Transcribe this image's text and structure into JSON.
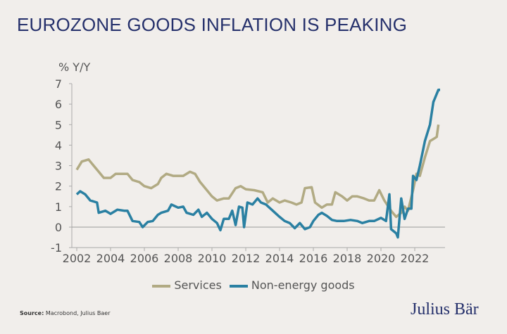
{
  "title": "EUROZONE GOODS INFLATION IS PEAKING",
  "source_label": "Source:",
  "source_text": "Macrobond, Julius Baer",
  "logo": "Julius Bär",
  "chart_data": {
    "type": "line",
    "title": "EUROZONE GOODS INFLATION IS PEAKING",
    "ylabel": "% Y/Y",
    "xlabel": "",
    "xlim": [
      2001.9,
      2023.7
    ],
    "ylim": [
      -1,
      7
    ],
    "xticks": [
      2002,
      2004,
      2006,
      2008,
      2010,
      2012,
      2014,
      2016,
      2018,
      2020,
      2022
    ],
    "yticks": [
      -1,
      0,
      1,
      2,
      3,
      4,
      5,
      6,
      7
    ],
    "legend": "bottom-center",
    "grid": false,
    "series": [
      {
        "name": "Services",
        "color": "#b1aa83",
        "x": [
          2002.0,
          2002.3,
          2002.7,
          2003.0,
          2003.3,
          2003.6,
          2004.0,
          2004.3,
          2004.7,
          2005.0,
          2005.3,
          2005.7,
          2006.0,
          2006.4,
          2006.8,
          2007.0,
          2007.3,
          2007.7,
          2008.0,
          2008.3,
          2008.7,
          2009.0,
          2009.3,
          2009.7,
          2010.0,
          2010.3,
          2010.7,
          2011.0,
          2011.4,
          2011.7,
          2012.0,
          2012.5,
          2013.0,
          2013.3,
          2013.6,
          2014.0,
          2014.3,
          2014.7,
          2015.0,
          2015.3,
          2015.5,
          2015.9,
          2016.1,
          2016.5,
          2016.8,
          2017.1,
          2017.3,
          2017.7,
          2018.0,
          2018.3,
          2018.6,
          2019.0,
          2019.3,
          2019.6,
          2019.9,
          2020.2,
          2020.6,
          2020.9,
          2021.2,
          2021.4,
          2021.6,
          2021.9,
          2022.1,
          2022.3,
          2022.6,
          2022.9,
          2023.1,
          2023.3,
          2023.4
        ],
        "y": [
          2.8,
          3.2,
          3.3,
          3.0,
          2.7,
          2.4,
          2.4,
          2.6,
          2.6,
          2.6,
          2.3,
          2.2,
          2.0,
          1.9,
          2.1,
          2.4,
          2.6,
          2.5,
          2.5,
          2.5,
          2.7,
          2.6,
          2.2,
          1.8,
          1.5,
          1.3,
          1.4,
          1.4,
          1.9,
          2.0,
          1.85,
          1.8,
          1.7,
          1.2,
          1.4,
          1.2,
          1.3,
          1.2,
          1.1,
          1.2,
          1.9,
          1.95,
          1.2,
          0.95,
          1.1,
          1.1,
          1.7,
          1.5,
          1.3,
          1.5,
          1.5,
          1.4,
          1.3,
          1.3,
          1.8,
          1.3,
          0.8,
          0.5,
          0.7,
          1.0,
          0.8,
          1.8,
          2.6,
          2.5,
          3.4,
          4.2,
          4.3,
          4.4,
          5.0
        ]
      },
      {
        "name": "Non-energy goods",
        "color": "#2a80a2",
        "x": [
          2002.0,
          2002.2,
          2002.5,
          2002.8,
          2003.2,
          2003.3,
          2003.7,
          2004.0,
          2004.4,
          2004.8,
          2005.0,
          2005.3,
          2005.7,
          2005.9,
          2006.2,
          2006.5,
          2006.8,
          2007.0,
          2007.4,
          2007.6,
          2008.0,
          2008.3,
          2008.5,
          2008.9,
          2009.2,
          2009.4,
          2009.7,
          2010.0,
          2010.3,
          2010.5,
          2010.7,
          2011.0,
          2011.2,
          2011.4,
          2011.6,
          2011.8,
          2011.9,
          2012.1,
          2012.4,
          2012.7,
          2012.9,
          2013.2,
          2013.6,
          2014.0,
          2014.3,
          2014.6,
          2014.9,
          2015.2,
          2015.5,
          2015.8,
          2016.0,
          2016.3,
          2016.5,
          2016.8,
          2017.1,
          2017.4,
          2017.8,
          2018.2,
          2018.6,
          2018.9,
          2019.3,
          2019.6,
          2020.0,
          2020.3,
          2020.5,
          2020.6,
          2020.9,
          2021.0,
          2021.2,
          2021.4,
          2021.6,
          2021.8,
          2021.9,
          2022.1,
          2022.3,
          2022.6,
          2022.9,
          2023.1,
          2023.4,
          2023.5
        ],
        "y": [
          1.6,
          1.75,
          1.6,
          1.3,
          1.2,
          0.7,
          0.8,
          0.65,
          0.85,
          0.8,
          0.8,
          0.3,
          0.25,
          0.0,
          0.25,
          0.3,
          0.6,
          0.7,
          0.8,
          1.1,
          0.95,
          1.0,
          0.7,
          0.6,
          0.85,
          0.5,
          0.7,
          0.4,
          0.2,
          -0.15,
          0.4,
          0.4,
          0.8,
          0.1,
          1.0,
          0.95,
          0.0,
          1.2,
          1.1,
          1.4,
          1.2,
          1.1,
          0.8,
          0.5,
          0.3,
          0.2,
          -0.05,
          0.2,
          -0.1,
          0.0,
          0.3,
          0.6,
          0.7,
          0.55,
          0.35,
          0.3,
          0.3,
          0.35,
          0.3,
          0.2,
          0.3,
          0.3,
          0.45,
          0.3,
          1.6,
          -0.1,
          -0.3,
          -0.5,
          1.4,
          0.4,
          0.9,
          0.9,
          2.5,
          2.3,
          3.0,
          4.2,
          5.0,
          6.1,
          6.7,
          6.7
        ]
      }
    ]
  }
}
